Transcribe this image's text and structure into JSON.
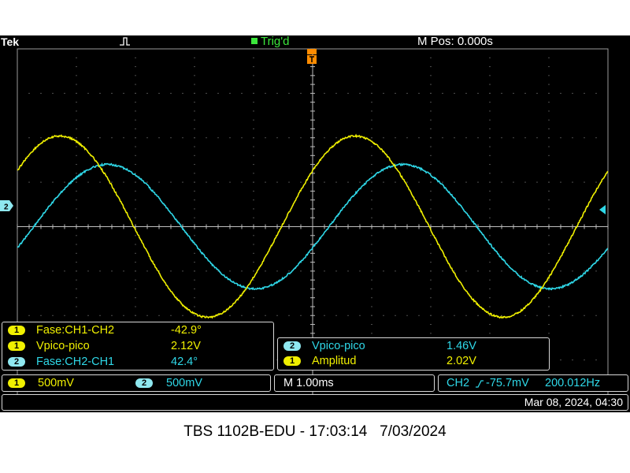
{
  "header": {
    "brand": "Tek",
    "acq_icon": "run-pulse-icon",
    "trigger_status": "Trig'd",
    "horizontal_position": "M Pos: 0.000s"
  },
  "colors": {
    "ch1": "#f0f000",
    "ch2": "#2fd8e8",
    "trigger_marker": "#ff8c00",
    "grid": "#9a9a9a",
    "status_green": "#3ce63c"
  },
  "ground_marker": "2",
  "measurements_left": [
    {
      "badge": "1",
      "label": "Fase:CH1-CH2",
      "value": "-42.9°",
      "color": "yellow"
    },
    {
      "badge": "1",
      "label": "Vpico-pico",
      "value": "2.12V",
      "color": "yellow"
    },
    {
      "badge": "2",
      "label": "Fase:CH2-CH1",
      "value": "42.4°",
      "color": "cyan"
    }
  ],
  "measurements_right": [
    {
      "badge": "2",
      "label": "Vpico-pico",
      "value": "1.46V",
      "color": "cyan"
    },
    {
      "badge": "1",
      "label": "Amplitud",
      "value": "2.02V",
      "color": "yellow"
    }
  ],
  "scales": {
    "ch1_badge": "1",
    "ch1": "500mV",
    "ch2_badge": "2",
    "ch2": "500mV",
    "timebase": "M 1.00ms",
    "trigger_source": "CH2",
    "trigger_slope_icon": "rising-edge-icon",
    "trigger_level": "-75.7mV",
    "frequency": "200.012Hz"
  },
  "timestamp": "Mar 08, 2024, 04:30",
  "caption": "TBS 1102B-EDU - 17:03:14   7/03/2024",
  "chart_data": {
    "type": "line",
    "title": "",
    "x": {
      "divisions": 10,
      "units_per_div": "1.00ms"
    },
    "y": {
      "divisions": 8,
      "units_per_div": "500mV"
    },
    "series": [
      {
        "name": "CH1",
        "frequency_hz": 200.012,
        "amplitude_v": 1.02,
        "offset_v": 0,
        "phase_deg_at_left": 38,
        "peak_to_peak_v": 2.12
      },
      {
        "name": "CH2",
        "frequency_hz": 200.012,
        "amplitude_v": 0.7,
        "offset_v": 0,
        "phase_deg_at_left": -20,
        "peak_to_peak_v": 1.46
      }
    ],
    "grid": true
  }
}
